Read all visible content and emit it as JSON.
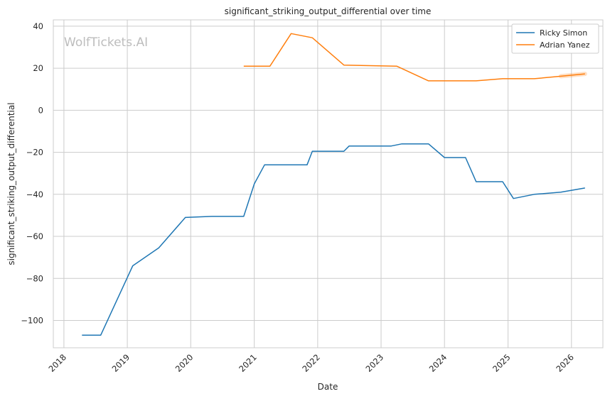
{
  "watermark": "WolfTickets.AI",
  "chart_data": {
    "type": "line",
    "title": "significant_striking_output_differential over time",
    "xlabel": "Date",
    "ylabel": "significant_striking_output_differential",
    "xlim": [
      "2017-11-01",
      "2026-07-01"
    ],
    "ylim": [
      -113,
      43
    ],
    "x_ticks": [
      "2018",
      "2019",
      "2020",
      "2021",
      "2022",
      "2023",
      "2024",
      "2025",
      "2026"
    ],
    "y_ticks": [
      40,
      20,
      0,
      -20,
      -40,
      -60,
      -80,
      -100
    ],
    "y_tick_labels": [
      "40",
      "20",
      "0",
      "−20",
      "−40",
      "−60",
      "−80",
      "−100"
    ],
    "grid": true,
    "legend_position": "top-right",
    "series": [
      {
        "name": "Ricky Simon",
        "color": "#1f77b4",
        "points": [
          [
            "2018-04-15",
            -107
          ],
          [
            "2018-08-01",
            -107
          ],
          [
            "2019-02-01",
            -74
          ],
          [
            "2019-07-01",
            -65.5
          ],
          [
            "2019-12-01",
            -51
          ],
          [
            "2020-05-01",
            -50.5
          ],
          [
            "2020-11-01",
            -50.5
          ],
          [
            "2021-01-01",
            -35
          ],
          [
            "2021-03-01",
            -26
          ],
          [
            "2021-11-01",
            -26
          ],
          [
            "2021-12-01",
            -19.5
          ],
          [
            "2022-06-01",
            -19.5
          ],
          [
            "2022-07-01",
            -17
          ],
          [
            "2023-03-01",
            -17
          ],
          [
            "2023-05-01",
            -16
          ],
          [
            "2023-10-01",
            -16
          ],
          [
            "2024-01-01",
            -22.5
          ],
          [
            "2024-05-01",
            -22.5
          ],
          [
            "2024-07-01",
            -34
          ],
          [
            "2024-12-01",
            -34
          ],
          [
            "2025-02-01",
            -42
          ],
          [
            "2025-06-01",
            -40
          ],
          [
            "2025-11-01",
            -39
          ],
          [
            "2026-03-20",
            -37
          ]
        ]
      },
      {
        "name": "Adrian Yanez",
        "color": "#ff7f0e",
        "points": [
          [
            "2020-11-01",
            21
          ],
          [
            "2021-04-01",
            21
          ],
          [
            "2021-08-01",
            36.5
          ],
          [
            "2021-12-01",
            34.5
          ],
          [
            "2022-06-01",
            21.5
          ],
          [
            "2023-04-01",
            21
          ],
          [
            "2023-10-01",
            14
          ],
          [
            "2024-07-01",
            14
          ],
          [
            "2024-12-01",
            15
          ],
          [
            "2025-06-01",
            15
          ],
          [
            "2025-11-01",
            16.2
          ],
          [
            "2026-03-20",
            17.3
          ]
        ]
      }
    ]
  }
}
